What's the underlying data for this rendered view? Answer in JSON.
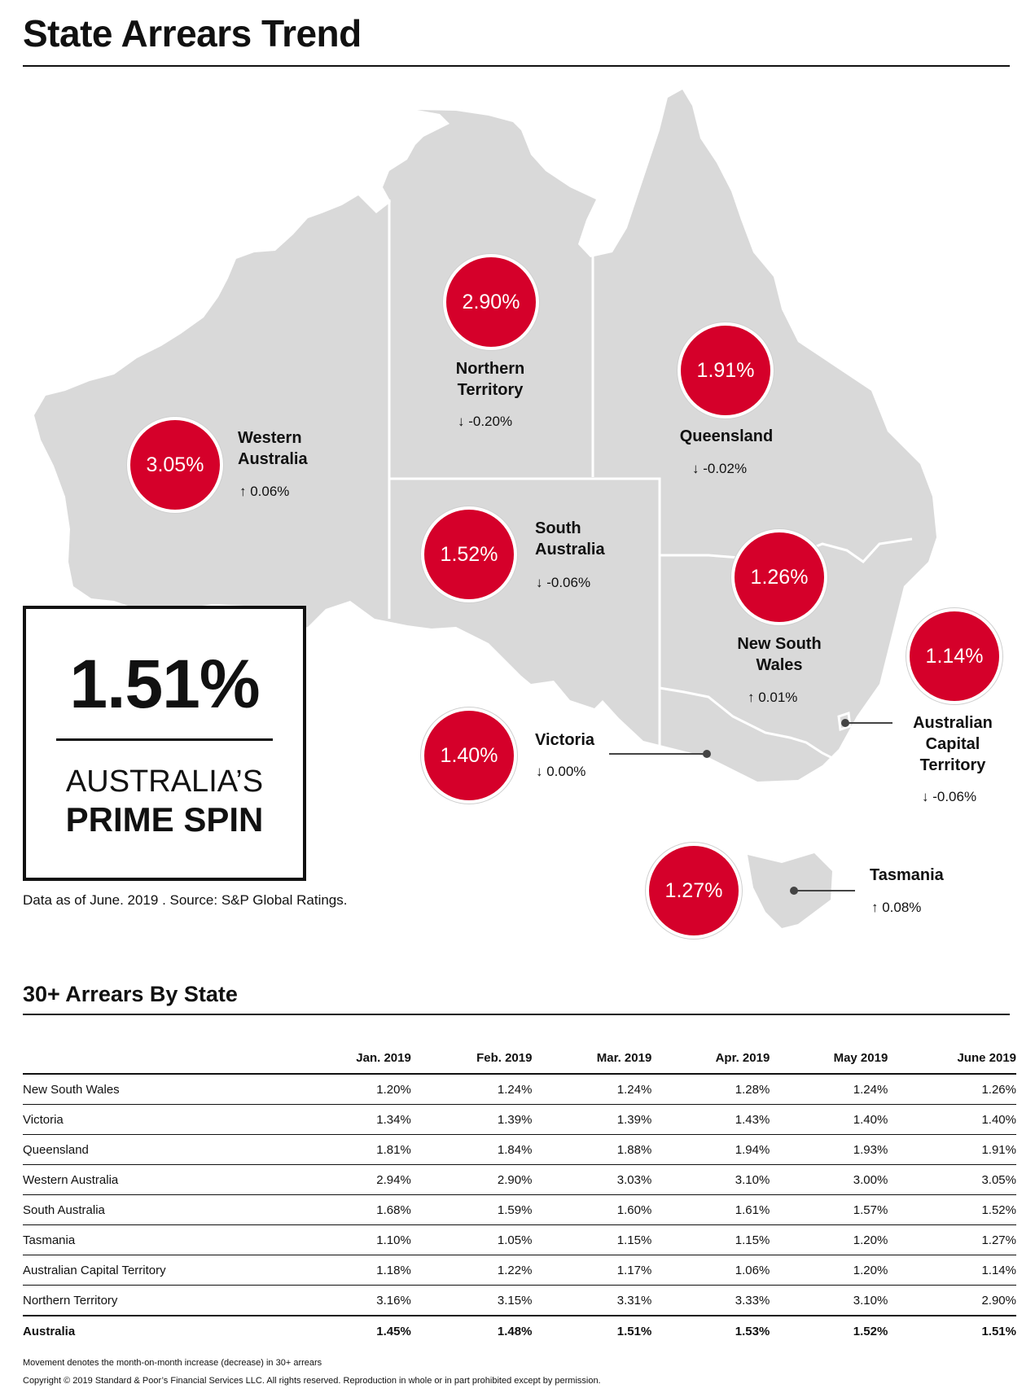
{
  "title": "State Arrears Trend",
  "national": {
    "value": "1.51%",
    "label_line1": "AUSTRALIA’S",
    "label_line2": "PRIME SPIN"
  },
  "as_of": "Data as of June. 2019 . Source: S&P Global Ratings.",
  "states": {
    "wa": {
      "value": "3.05%",
      "name": [
        "Western",
        "Australia"
      ],
      "movement": "↑ 0.06%"
    },
    "nt": {
      "value": "2.90%",
      "name": [
        "Northern",
        "Territory"
      ],
      "movement": "↓ -0.20%"
    },
    "qld": {
      "value": "1.91%",
      "name": [
        "Queensland"
      ],
      "movement": "↓ -0.02%"
    },
    "sa": {
      "value": "1.52%",
      "name": [
        "South",
        "Australia"
      ],
      "movement": "↓ -0.06%"
    },
    "nsw": {
      "value": "1.26%",
      "name": [
        "New South",
        "Wales"
      ],
      "movement": "↑ 0.01%"
    },
    "act": {
      "value": "1.14%",
      "name": [
        "Australian",
        "Capital",
        "Territory"
      ],
      "movement": "↓ -0.06%"
    },
    "vic": {
      "value": "1.40%",
      "name": [
        "Victoria"
      ],
      "movement": "↓ 0.00%"
    },
    "tas": {
      "value": "1.27%",
      "name": [
        "Tasmania"
      ],
      "movement": "↑ 0.08%"
    }
  },
  "table": {
    "title": "30+ Arrears By State",
    "columns": [
      "",
      "Jan. 2019",
      "Feb. 2019",
      "Mar. 2019",
      "Apr. 2019",
      "May 2019",
      "June 2019"
    ],
    "rows": [
      [
        "New South Wales",
        "1.20%",
        "1.24%",
        "1.24%",
        "1.28%",
        "1.24%",
        "1.26%"
      ],
      [
        "Victoria",
        "1.34%",
        "1.39%",
        "1.39%",
        "1.43%",
        "1.40%",
        "1.40%"
      ],
      [
        "Queensland",
        "1.81%",
        "1.84%",
        "1.88%",
        "1.94%",
        "1.93%",
        "1.91%"
      ],
      [
        "Western Australia",
        "2.94%",
        "2.90%",
        "3.03%",
        "3.10%",
        "3.00%",
        "3.05%"
      ],
      [
        "South Australia",
        "1.68%",
        "1.59%",
        "1.60%",
        "1.61%",
        "1.57%",
        "1.52%"
      ],
      [
        "Tasmania",
        "1.10%",
        "1.05%",
        "1.15%",
        "1.15%",
        "1.20%",
        "1.27%"
      ],
      [
        "Australian Capital Territory",
        "1.18%",
        "1.22%",
        "1.17%",
        "1.06%",
        "1.20%",
        "1.14%"
      ],
      [
        "Northern Territory",
        "3.16%",
        "3.15%",
        "3.31%",
        "3.33%",
        "3.10%",
        "2.90%"
      ]
    ],
    "total": [
      "Australia",
      "1.45%",
      "1.48%",
      "1.51%",
      "1.53%",
      "1.52%",
      "1.51%"
    ]
  },
  "footnotes": [
    "Movement denotes the month-on-month increase (decrease) in 30+ arrears",
    "Copyright © 2019 Standard & Poor’s Financial Services LLC. All rights reserved. Reproduction in whole or in part prohibited except by permission."
  ],
  "colors": {
    "circle": "#d5002a",
    "land": "#d9d9d9",
    "border": "#ffffff"
  }
}
